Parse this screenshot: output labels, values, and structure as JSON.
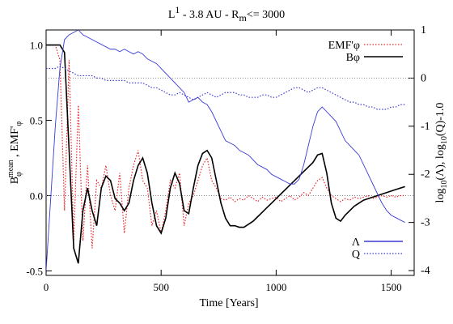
{
  "chart_data": {
    "type": "line",
    "title_parts": [
      "L",
      "1",
      " - 3.8 AU - R",
      "m",
      "<= 3000"
    ],
    "xlabel": "Time [Years]",
    "ylabel_parts": [
      "B",
      "φ",
      "mean",
      " , EMF'",
      "φ"
    ],
    "y2label_parts": [
      "log",
      "10",
      "(Λ), log",
      "10",
      "(Q)-1.0"
    ],
    "x": [
      0,
      20,
      40,
      60,
      80,
      100,
      120,
      140,
      160,
      180,
      200,
      220,
      240,
      260,
      280,
      300,
      320,
      340,
      360,
      380,
      400,
      420,
      440,
      460,
      480,
      500,
      520,
      540,
      560,
      580,
      600,
      620,
      640,
      660,
      680,
      700,
      720,
      740,
      760,
      780,
      800,
      820,
      840,
      860,
      880,
      900,
      920,
      940,
      960,
      980,
      1000,
      1020,
      1040,
      1060,
      1080,
      1100,
      1120,
      1140,
      1160,
      1180,
      1200,
      1220,
      1240,
      1260,
      1280,
      1300,
      1320,
      1340,
      1360,
      1380,
      1400,
      1420,
      1440,
      1460,
      1480,
      1500,
      1520,
      1540,
      1560
    ],
    "series": [
      {
        "name": "EMF'φ",
        "color": "#e8262a",
        "dash": "dotted",
        "axis": "y",
        "values": [
          1.0,
          1.0,
          1.0,
          0.9,
          -0.1,
          0.9,
          -0.3,
          0.6,
          -0.3,
          0.2,
          -0.35,
          0.1,
          0.05,
          0.2,
          0.0,
          -0.1,
          0.15,
          -0.25,
          0.05,
          0.2,
          0.3,
          0.1,
          0.05,
          -0.2,
          -0.1,
          -0.25,
          -0.1,
          0.1,
          0.05,
          0.15,
          -0.2,
          -0.05,
          0.0,
          0.1,
          0.2,
          0.25,
          0.1,
          0.05,
          -0.02,
          -0.03,
          -0.01,
          -0.04,
          -0.02,
          -0.03,
          0.0,
          -0.02,
          -0.04,
          -0.01,
          -0.03,
          -0.02,
          -0.01,
          -0.04,
          -0.02,
          0.0,
          -0.03,
          -0.01,
          0.02,
          0.0,
          0.05,
          0.1,
          0.12,
          0.05,
          0.0,
          -0.02,
          -0.04,
          -0.02,
          -0.03,
          -0.01,
          -0.02,
          -0.01,
          0.0,
          -0.02,
          -0.01,
          0.0,
          -0.01,
          0.0,
          -0.01,
          0.0,
          0.0
        ]
      },
      {
        "name": "Bφ",
        "color": "#000000",
        "dash": "solid",
        "axis": "y",
        "values": [
          1.0,
          1.0,
          1.0,
          1.0,
          0.95,
          0.3,
          -0.35,
          -0.45,
          -0.1,
          0.05,
          -0.1,
          -0.2,
          0.05,
          0.13,
          0.1,
          -0.02,
          -0.05,
          -0.1,
          -0.05,
          0.1,
          0.2,
          0.25,
          0.15,
          -0.05,
          -0.2,
          -0.25,
          -0.15,
          0.05,
          0.15,
          0.08,
          -0.1,
          -0.12,
          0.05,
          0.2,
          0.28,
          0.3,
          0.25,
          0.1,
          -0.05,
          -0.15,
          -0.2,
          -0.2,
          -0.21,
          -0.21,
          -0.19,
          -0.17,
          -0.14,
          -0.11,
          -0.08,
          -0.05,
          -0.02,
          0.01,
          0.04,
          0.07,
          0.1,
          0.13,
          0.16,
          0.19,
          0.22,
          0.27,
          0.28,
          0.15,
          -0.05,
          -0.15,
          -0.17,
          -0.13,
          -0.1,
          -0.07,
          -0.05,
          -0.03,
          -0.02,
          -0.01,
          0.0,
          0.01,
          0.02,
          0.03,
          0.04,
          0.05,
          0.06
        ]
      },
      {
        "name": "Λ",
        "color": "#3b3bd6",
        "dash": "solid",
        "axis": "y2",
        "values": [
          -4.0,
          -2.5,
          -1.0,
          0.2,
          0.8,
          0.9,
          0.95,
          1.0,
          0.9,
          0.85,
          0.8,
          0.75,
          0.7,
          0.65,
          0.6,
          0.6,
          0.55,
          0.6,
          0.55,
          0.5,
          0.55,
          0.5,
          0.4,
          0.35,
          0.3,
          0.2,
          0.1,
          0.0,
          -0.1,
          -0.2,
          -0.3,
          -0.5,
          -0.45,
          -0.4,
          -0.5,
          -0.55,
          -0.7,
          -0.9,
          -1.1,
          -1.3,
          -1.35,
          -1.4,
          -1.5,
          -1.55,
          -1.6,
          -1.7,
          -1.8,
          -1.85,
          -1.9,
          -2.0,
          -2.05,
          -2.1,
          -2.15,
          -2.2,
          -2.2,
          -2.1,
          -1.8,
          -1.4,
          -1.0,
          -0.7,
          -0.6,
          -0.7,
          -0.8,
          -0.9,
          -1.1,
          -1.3,
          -1.4,
          -1.5,
          -1.6,
          -1.8,
          -2.0,
          -2.2,
          -2.4,
          -2.6,
          -2.75,
          -2.85,
          -2.9,
          -2.95,
          -3.0
        ]
      },
      {
        "name": "Q",
        "color": "#3b3bd6",
        "dash": "dotted",
        "axis": "y2",
        "values": [
          0.2,
          0.2,
          0.2,
          0.25,
          0.2,
          0.15,
          0.1,
          0.05,
          0.05,
          0.05,
          0.05,
          0.0,
          0.0,
          -0.05,
          -0.05,
          -0.05,
          -0.05,
          -0.05,
          -0.1,
          -0.1,
          -0.1,
          -0.1,
          -0.15,
          -0.2,
          -0.2,
          -0.25,
          -0.3,
          -0.35,
          -0.35,
          -0.3,
          -0.35,
          -0.4,
          -0.45,
          -0.4,
          -0.35,
          -0.3,
          -0.35,
          -0.4,
          -0.35,
          -0.3,
          -0.3,
          -0.3,
          -0.35,
          -0.35,
          -0.4,
          -0.4,
          -0.4,
          -0.35,
          -0.35,
          -0.4,
          -0.4,
          -0.35,
          -0.3,
          -0.25,
          -0.2,
          -0.2,
          -0.25,
          -0.3,
          -0.25,
          -0.2,
          -0.2,
          -0.25,
          -0.3,
          -0.35,
          -0.4,
          -0.45,
          -0.5,
          -0.5,
          -0.55,
          -0.55,
          -0.6,
          -0.6,
          -0.65,
          -0.65,
          -0.65,
          -0.6,
          -0.6,
          -0.55,
          -0.55
        ]
      }
    ],
    "xlim": [
      0,
      1600
    ],
    "xticks": [
      0,
      500,
      1000,
      1500
    ],
    "ylim": [
      -0.53,
      1.1
    ],
    "yticks": [
      {
        "value": 1.0,
        "label": "1.0"
      },
      {
        "value": 0.5,
        "label": "0.5"
      },
      {
        "value": 0.0,
        "label": "0.0"
      },
      {
        "value": -0.5,
        "label": "-0.5"
      }
    ],
    "y2lim": [
      -4.1,
      1.0
    ],
    "y2ticks": [
      1,
      0,
      -1,
      -2,
      -3,
      -4
    ],
    "y_reference": 0,
    "y2_reference": 0,
    "reference_color": "#888888"
  }
}
